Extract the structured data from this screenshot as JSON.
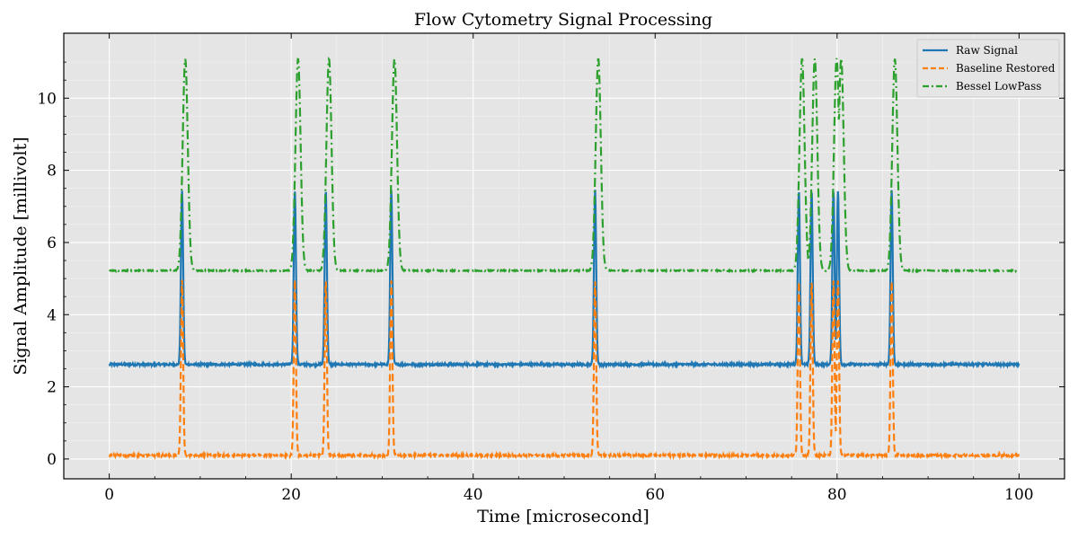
{
  "chart_data": {
    "type": "line",
    "title": "Flow Cytometry Signal Processing",
    "xlabel": "Time [microsecond]",
    "ylabel": "Signal Amplitude [millivolt]",
    "xlim": [
      -5,
      105
    ],
    "ylim": [
      -0.55,
      11.8
    ],
    "xticks": [
      0,
      20,
      40,
      60,
      80,
      100
    ],
    "yticks": [
      0,
      2,
      4,
      6,
      8,
      10
    ],
    "grid": true,
    "background": "#e5e5e5",
    "legend_position": "top-right",
    "pulse_times": [
      8.0,
      20.4,
      23.8,
      31.0,
      53.4,
      75.8,
      77.2,
      79.6,
      80.1,
      86.0
    ],
    "series": [
      {
        "name": "Raw Signal",
        "color": "#1f77b4",
        "style": "solid",
        "baseline": 2.62,
        "peak": 7.45,
        "x_range": [
          0,
          100
        ]
      },
      {
        "name": "Baseline Restored",
        "color": "#ff7f0e",
        "style": "dashed",
        "baseline": 0.1,
        "peak": 4.95,
        "x_range": [
          0,
          100
        ]
      },
      {
        "name": "Bessel LowPass",
        "color": "#2ca02c",
        "style": "dashdot",
        "baseline": 5.22,
        "peak": 11.1,
        "x_range": [
          0,
          100
        ]
      }
    ]
  }
}
